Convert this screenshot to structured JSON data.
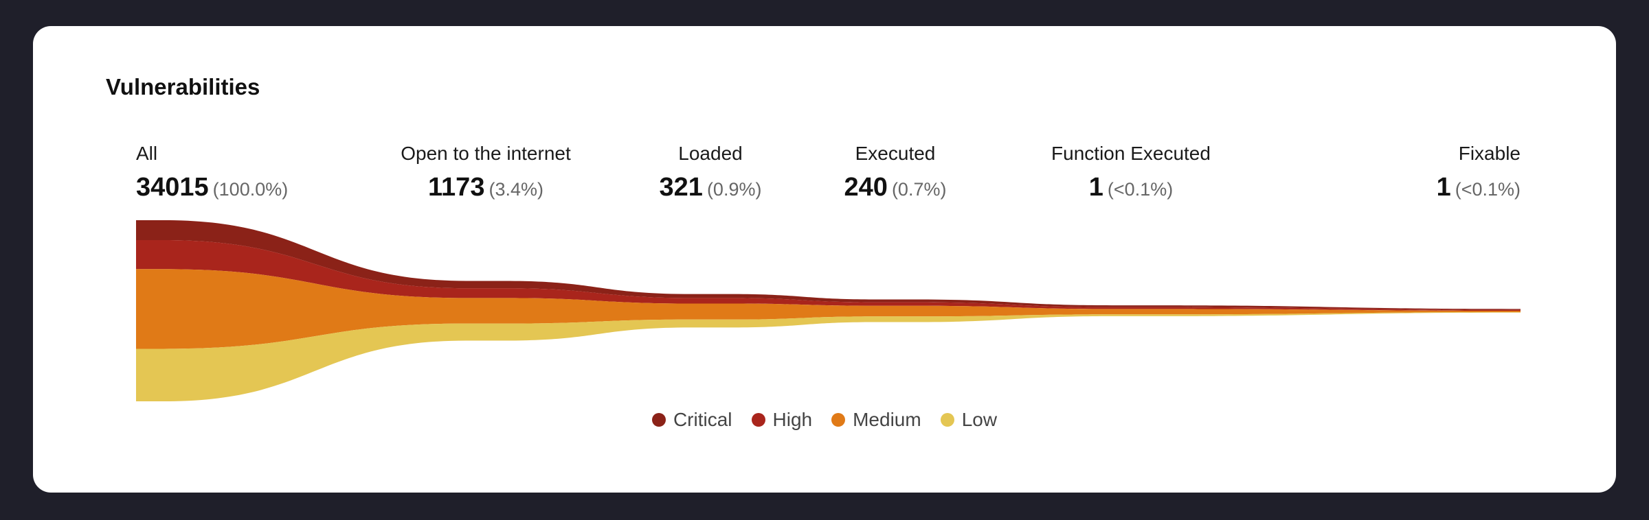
{
  "card": {
    "title": "Vulnerabilities"
  },
  "chart_data": {
    "type": "area",
    "categories": [
      "All",
      "Open to the internet",
      "Loaded",
      "Executed",
      "Function Executed",
      "Fixable"
    ],
    "stages": [
      {
        "label": "All",
        "count": "34015",
        "pct": "(100.0%)",
        "value": 34015
      },
      {
        "label": "Open to the internet",
        "count": "1173",
        "pct": "(3.4%)",
        "value": 1173
      },
      {
        "label": "Loaded",
        "count": "321",
        "pct": "(0.9%)",
        "value": 321
      },
      {
        "label": "Executed",
        "count": "240",
        "pct": "(0.7%)",
        "value": 240
      },
      {
        "label": "Function Executed",
        "count": "1",
        "pct": "(<0.1%)",
        "value": 1
      },
      {
        "label": "Fixable",
        "count": "1",
        "pct": "(<0.1%)",
        "value": 1
      }
    ],
    "series": [
      {
        "name": "Critical",
        "color": "#8b2218"
      },
      {
        "name": "High",
        "color": "#a9251c"
      },
      {
        "name": "Medium",
        "color": "#e07a17"
      },
      {
        "name": "Low",
        "color": "#e4c653"
      }
    ],
    "relative_band_values": {
      "Critical": [
        0.11,
        0.06,
        0.025,
        0.02,
        0.01,
        0.004
      ],
      "High": [
        0.16,
        0.08,
        0.035,
        0.025,
        0.01,
        0.004
      ],
      "Medium": [
        0.44,
        0.21,
        0.1,
        0.075,
        0.03,
        0.006
      ],
      "Low": [
        0.29,
        0.14,
        0.05,
        0.04,
        0.01,
        0.002
      ]
    },
    "legend_placement": "bottom-center"
  }
}
